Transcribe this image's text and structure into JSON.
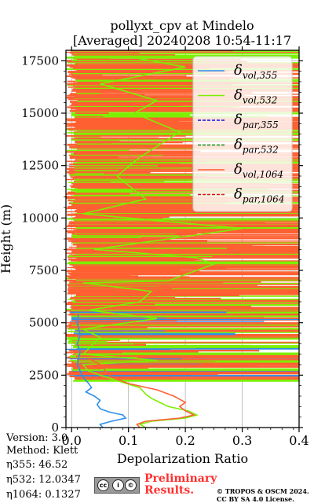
{
  "title_line1": "pollyxt_cpv at Mindelo",
  "title_line2": "[Averaged] 20240208 10:54-11:17",
  "chart_data": {
    "type": "line",
    "xlabel": "Depolarization Ratio",
    "ylabel": "Height (m)",
    "xlim": [
      -0.01,
      0.4
    ],
    "ylim": [
      0,
      18000
    ],
    "xticks": [
      "0.0",
      "0.1",
      "0.2",
      "0.3",
      "0.4"
    ],
    "yticks": [
      "0",
      "2500",
      "5000",
      "7500",
      "10000",
      "12500",
      "15000",
      "17500"
    ],
    "grid": true,
    "legend_position": "top-right",
    "series": [
      {
        "name": "δvol,355",
        "color": "#2f8fe8",
        "style": "solid",
        "points": [
          [
            0.055,
            0
          ],
          [
            0.05,
            150
          ],
          [
            0.07,
            300
          ],
          [
            0.095,
            450
          ],
          [
            0.09,
            600
          ],
          [
            0.065,
            750
          ],
          [
            0.05,
            900
          ],
          [
            0.045,
            1100
          ],
          [
            0.05,
            1300
          ],
          [
            0.04,
            1500
          ],
          [
            0.025,
            1700
          ],
          [
            0.035,
            1900
          ],
          [
            0.03,
            2100
          ],
          [
            0.02,
            2400
          ],
          [
            0.015,
            2700
          ],
          [
            0.01,
            3000
          ],
          [
            0.012,
            3300
          ],
          [
            0.015,
            3600
          ],
          [
            0.01,
            4000
          ],
          [
            0.015,
            4400
          ],
          [
            0.01,
            5000
          ],
          [
            0.012,
            5400
          ]
        ]
      },
      {
        "name": "δvol,532",
        "color": "#7cf000",
        "style": "solid",
        "points": [
          [
            0.13,
            0
          ],
          [
            0.12,
            150
          ],
          [
            0.14,
            300
          ],
          [
            0.2,
            450
          ],
          [
            0.22,
            600
          ],
          [
            0.205,
            800
          ],
          [
            0.17,
            1000
          ],
          [
            0.155,
            1200
          ],
          [
            0.14,
            1400
          ],
          [
            0.13,
            1600
          ],
          [
            0.12,
            1900
          ],
          [
            0.085,
            2200
          ],
          [
            0.05,
            2500
          ],
          [
            0.03,
            2700
          ],
          [
            0.02,
            3000
          ],
          [
            0.15,
            3200
          ],
          [
            0.02,
            3500
          ],
          [
            0.05,
            4300
          ],
          [
            0.02,
            4700
          ],
          [
            0.15,
            5200
          ],
          [
            0.03,
            5600
          ],
          [
            0.12,
            6000
          ],
          [
            0.14,
            6500
          ],
          [
            0.02,
            6900
          ],
          [
            0.17,
            7000
          ],
          [
            0.25,
            7800
          ],
          [
            0.22,
            8100
          ],
          [
            0.04,
            8500
          ],
          [
            0.3,
            9500
          ],
          [
            0.02,
            10200
          ],
          [
            0.13,
            10900
          ],
          [
            0.08,
            12000
          ],
          [
            0.12,
            12900
          ],
          [
            0.19,
            14100
          ],
          [
            0.11,
            15000
          ],
          [
            0.15,
            15600
          ],
          [
            0.05,
            16400
          ],
          [
            0.2,
            17200
          ],
          [
            0.1,
            17700
          ]
        ]
      },
      {
        "name": "δpar,355",
        "color": "#1010dd",
        "style": "dashed",
        "points": []
      },
      {
        "name": "δpar,532",
        "color": "#109010",
        "style": "dashed",
        "points": []
      },
      {
        "name": "δvol,1064",
        "color": "#ff6033",
        "style": "solid",
        "points": [
          [
            0.12,
            0
          ],
          [
            0.115,
            150
          ],
          [
            0.13,
            300
          ],
          [
            0.19,
            450
          ],
          [
            0.215,
            600
          ],
          [
            0.2,
            800
          ],
          [
            0.19,
            1000
          ],
          [
            0.2,
            1200
          ],
          [
            0.18,
            1500
          ],
          [
            0.15,
            1800
          ],
          [
            0.1,
            2100
          ],
          [
            0.07,
            2400
          ],
          [
            0.06,
            2700
          ],
          [
            0.05,
            3000
          ],
          [
            0.03,
            3300
          ]
        ]
      },
      {
        "name": "δpar,1064",
        "color": "#dd1020",
        "style": "dashed",
        "points": []
      }
    ]
  },
  "footer": {
    "version": "Version: 3.0",
    "method": "Method: Klett",
    "eta355": "η355:  46.52",
    "eta532": "η532: 12.0347",
    "eta1064": "η1064: 0.1327",
    "preliminary_line1": "Preliminary",
    "preliminary_line2": "Results.",
    "copyright_line1": "© TROPOS & OSCM 2024.",
    "copyright_line2": "CC BY SA 4.0 License.",
    "license_badge_symbols": [
      "cc",
      "i",
      "©"
    ],
    "license_badge_sub": "BY   SA"
  }
}
